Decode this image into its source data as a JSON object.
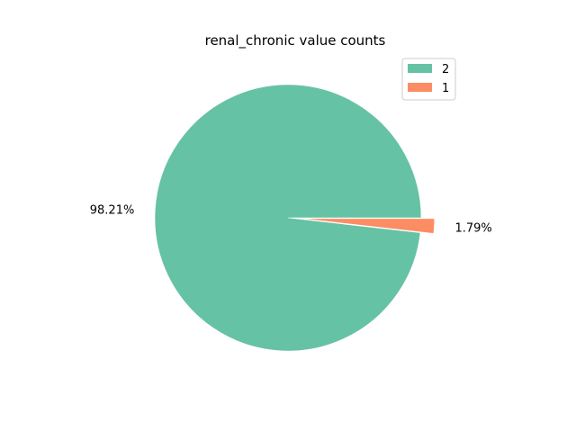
{
  "chart_data": {
    "type": "pie",
    "title": "renal_chronic value counts",
    "categories": [
      "2",
      "1"
    ],
    "values": [
      98.21,
      1.79
    ],
    "labels": [
      "98.21%",
      "1.79%"
    ],
    "colors": [
      "#66c2a5",
      "#fc8d62"
    ],
    "explode": [
      0,
      0.1
    ],
    "legend": {
      "placement": "top-right",
      "entries": [
        "2",
        "1"
      ]
    }
  }
}
